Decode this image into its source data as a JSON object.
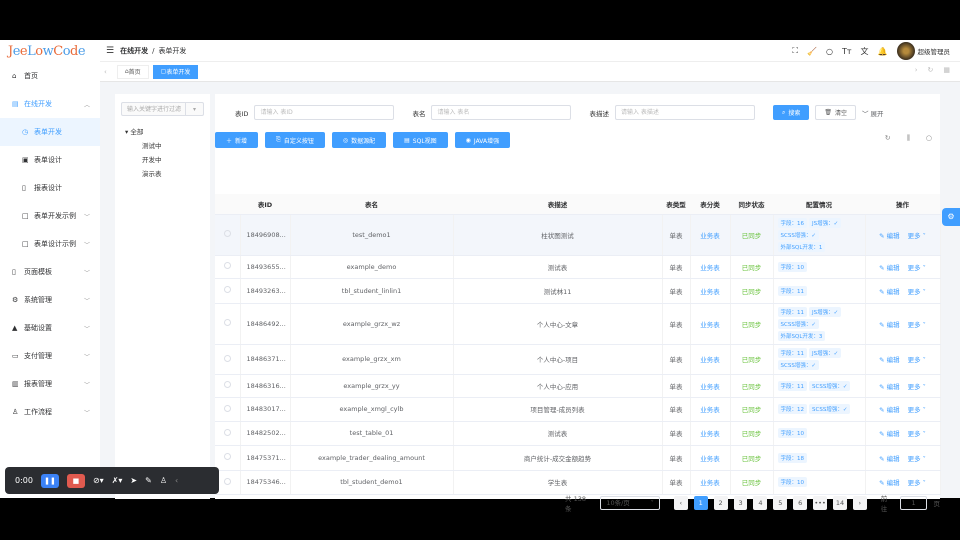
{
  "logo": "JeeLowCode",
  "header": {
    "breadcrumb": [
      "在线开发",
      "表单开发"
    ],
    "user": "超级管理员",
    "icons": [
      "fullscreen-icon",
      "clean-icon",
      "search-icon",
      "font-size-icon",
      "translate-icon",
      "bell-icon"
    ]
  },
  "tabs": [
    {
      "label": "首页"
    },
    {
      "label": "表单开发",
      "active": true
    }
  ],
  "sidebar": {
    "items": [
      {
        "label": "首页",
        "icon": "⌂"
      },
      {
        "label": "在线开发",
        "icon": "▤",
        "open": true,
        "chev": "︿"
      },
      {
        "label": "表单开发",
        "icon": "◷",
        "sub": true,
        "active": true
      },
      {
        "label": "表单设计",
        "icon": "▣",
        "sub": true
      },
      {
        "label": "报表设计",
        "icon": "▯",
        "sub": true
      },
      {
        "label": "表单开发示例",
        "icon": "□",
        "sub": true,
        "chev": "﹀"
      },
      {
        "label": "表单设计示例",
        "icon": "□",
        "sub": true,
        "chev": "﹀"
      },
      {
        "label": "页面模板",
        "icon": "▯",
        "chev": "﹀"
      },
      {
        "label": "系统管理",
        "icon": "⚙",
        "chev": "﹀"
      },
      {
        "label": "基础设置",
        "icon": "▲",
        "chev": "﹀"
      },
      {
        "label": "支付管理",
        "icon": "▭",
        "chev": "﹀"
      },
      {
        "label": "报表管理",
        "icon": "▥",
        "chev": "﹀"
      },
      {
        "label": "工作流程",
        "icon": "♙",
        "chev": "﹀"
      }
    ]
  },
  "tree": {
    "placeholder": "输入关键字进行过滤",
    "root": "全部",
    "children": [
      "测试中",
      "开发中",
      "演示表"
    ]
  },
  "filter": {
    "fields": [
      {
        "label": "表ID",
        "placeholder": "请输入 表ID"
      },
      {
        "label": "表名",
        "placeholder": "请输入 表名"
      },
      {
        "label": "表描述",
        "placeholder": "请输入 表描述"
      }
    ],
    "search": "搜索",
    "clear": "清空",
    "expand": "展开"
  },
  "toolbar": [
    "新增",
    "自定义按钮",
    "数据源配",
    "SQL视图",
    "JAVA增强"
  ],
  "table": {
    "columns": [
      "表ID",
      "表名",
      "表描述",
      "表类型",
      "表分类",
      "同步状态",
      "配置情况",
      "操作"
    ],
    "rows": [
      {
        "id": "18496908...",
        "name": "test_demo1",
        "desc": "柱状图测试",
        "type": "单表",
        "cat": "业务表",
        "sync": "已同步",
        "config": [
          "字段：16",
          "JS增强：✓",
          "SCSS增强：✓",
          "外部SQL开发：1"
        ]
      },
      {
        "id": "18493655...",
        "name": "example_demo",
        "desc": "测试表",
        "type": "单表",
        "cat": "业务表",
        "sync": "已同步",
        "config": [
          "字段：10"
        ]
      },
      {
        "id": "18493263...",
        "name": "tbl_student_linlin1",
        "desc": "测试林11",
        "type": "单表",
        "cat": "业务表",
        "sync": "已同步",
        "config": [
          "字段：11"
        ]
      },
      {
        "id": "18486492...",
        "name": "example_grzx_wz",
        "desc": "个人中心-文章",
        "type": "单表",
        "cat": "业务表",
        "sync": "已同步",
        "config": [
          "字段：11",
          "JS增强：✓",
          "SCSS增强：✓",
          "外部SQL开发：3"
        ]
      },
      {
        "id": "18486371...",
        "name": "example_grzx_xm",
        "desc": "个人中心-项目",
        "type": "单表",
        "cat": "业务表",
        "sync": "已同步",
        "config": [
          "字段：11",
          "JS增强：✓",
          "SCSS增强：✓"
        ]
      },
      {
        "id": "18486316...",
        "name": "example_grzx_yy",
        "desc": "个人中心-应用",
        "type": "单表",
        "cat": "业务表",
        "sync": "已同步",
        "config": [
          "字段：11",
          "SCSS增强：✓"
        ]
      },
      {
        "id": "18483017...",
        "name": "example_xmgl_cylb",
        "desc": "项目管理-成员列表",
        "type": "单表",
        "cat": "业务表",
        "sync": "已同步",
        "config": [
          "字段：12",
          "SCSS增强：✓"
        ]
      },
      {
        "id": "18482502...",
        "name": "test_table_01",
        "desc": "测试表",
        "type": "单表",
        "cat": "业务表",
        "sync": "已同步",
        "config": [
          "字段：10"
        ]
      },
      {
        "id": "18475371...",
        "name": "example_trader_dealing_amount",
        "desc": "商户统计-成交金额趋势",
        "type": "单表",
        "cat": "业务表",
        "sync": "已同步",
        "config": [
          "字段：18"
        ]
      },
      {
        "id": "18475346...",
        "name": "tbl_student_demo1",
        "desc": "学生表",
        "type": "单表",
        "cat": "业务表",
        "sync": "已同步",
        "config": [
          "字段：10"
        ]
      }
    ],
    "edit": "编辑",
    "more": "更多"
  },
  "pagination": {
    "total": "共 138 条",
    "page_size": "10条/页",
    "pages": [
      "1",
      "2",
      "3",
      "4",
      "5",
      "6",
      "•••",
      "14"
    ],
    "current": "1",
    "goto_label": "前往",
    "goto_value": "1",
    "goto_unit": "页"
  },
  "recorder": {
    "time": "0:00"
  },
  "colors": {
    "primary": "#409eff",
    "success": "#67c23a"
  }
}
